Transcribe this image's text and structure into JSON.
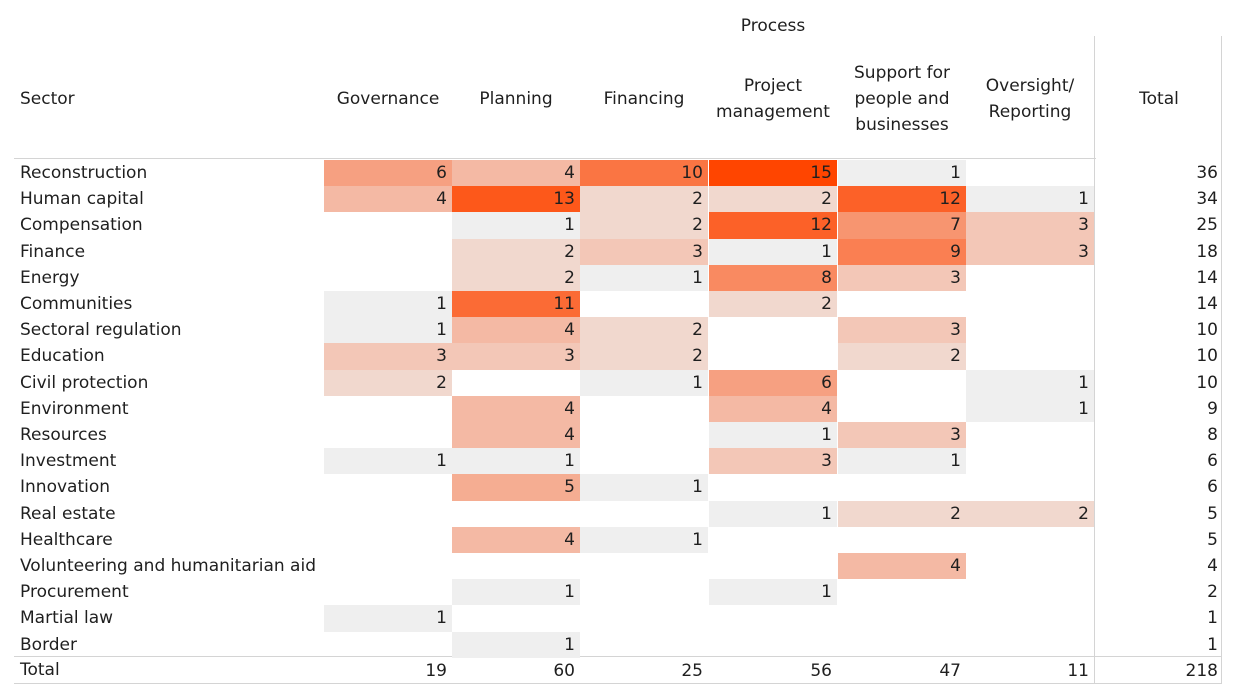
{
  "chart_data": {
    "type": "heatmap",
    "header_title": "Process",
    "row_header": "Sector",
    "columns": [
      "Governance",
      "Planning",
      "Financing",
      "Project\nmanagement",
      "Support for\npeople and\nbusinesses",
      "Oversight/\nReporting"
    ],
    "total_label": "Total",
    "rows": [
      {
        "label": "Reconstruction",
        "values": [
          6,
          4,
          10,
          15,
          1,
          null
        ],
        "total": 36
      },
      {
        "label": "Human capital",
        "values": [
          4,
          13,
          2,
          2,
          12,
          1
        ],
        "total": 34
      },
      {
        "label": "Compensation",
        "values": [
          null,
          1,
          2,
          12,
          7,
          3
        ],
        "total": 25
      },
      {
        "label": "Finance",
        "values": [
          null,
          2,
          3,
          1,
          9,
          3
        ],
        "total": 18
      },
      {
        "label": "Energy",
        "values": [
          null,
          2,
          1,
          8,
          3,
          null
        ],
        "total": 14
      },
      {
        "label": "Communities",
        "values": [
          1,
          11,
          null,
          2,
          null,
          null
        ],
        "total": 14
      },
      {
        "label": "Sectoral regulation",
        "values": [
          1,
          4,
          2,
          null,
          3,
          null
        ],
        "total": 10
      },
      {
        "label": "Education",
        "values": [
          3,
          3,
          2,
          null,
          2,
          null
        ],
        "total": 10
      },
      {
        "label": "Civil protection",
        "values": [
          2,
          null,
          1,
          6,
          null,
          1
        ],
        "total": 10
      },
      {
        "label": "Environment",
        "values": [
          null,
          4,
          null,
          4,
          null,
          1
        ],
        "total": 9
      },
      {
        "label": "Resources",
        "values": [
          null,
          4,
          null,
          1,
          3,
          null
        ],
        "total": 8
      },
      {
        "label": "Investment",
        "values": [
          1,
          1,
          null,
          3,
          1,
          null
        ],
        "total": 6
      },
      {
        "label": "Innovation",
        "values": [
          null,
          5,
          1,
          null,
          null,
          null
        ],
        "total": 6
      },
      {
        "label": "Real estate",
        "values": [
          null,
          null,
          null,
          1,
          2,
          2
        ],
        "total": 5
      },
      {
        "label": "Healthcare",
        "values": [
          null,
          4,
          1,
          null,
          null,
          null
        ],
        "total": 5
      },
      {
        "label": "Volunteering and humanitarian aid",
        "values": [
          null,
          null,
          null,
          null,
          4,
          null
        ],
        "total": 4
      },
      {
        "label": "Procurement",
        "values": [
          null,
          1,
          null,
          1,
          null,
          null
        ],
        "total": 2
      },
      {
        "label": "Martial law",
        "values": [
          1,
          null,
          null,
          null,
          null,
          null
        ],
        "total": 1
      },
      {
        "label": "Border",
        "values": [
          null,
          1,
          null,
          null,
          null,
          null
        ],
        "total": 1
      }
    ],
    "column_totals": [
      19,
      60,
      25,
      56,
      47,
      11
    ],
    "grand_total": 218,
    "color_low": "#efefef",
    "color_high": "#ff4500"
  }
}
